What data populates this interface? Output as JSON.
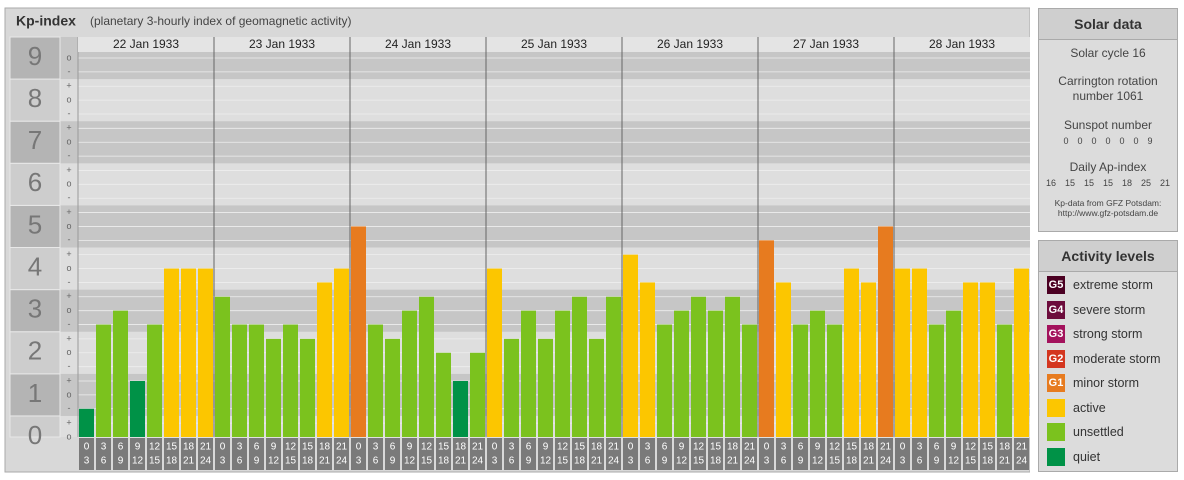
{
  "chart_data": {
    "type": "bar",
    "title": "Kp-index",
    "subtitle": "(planetary 3-hourly index of geomagnetic activity)",
    "ylim": [
      0,
      9
    ],
    "yticks": [
      0,
      1,
      2,
      3,
      4,
      5,
      6,
      7,
      8,
      9
    ],
    "minor_ticks": [
      {
        "value": 9,
        "label": "o"
      },
      {
        "value": 8.67,
        "label": "-"
      },
      {
        "value": 8.33,
        "label": "+"
      },
      {
        "value": 8,
        "label": "o"
      },
      {
        "value": 7.67,
        "label": "-"
      },
      {
        "value": 7.33,
        "label": "+"
      },
      {
        "value": 7,
        "label": "o"
      },
      {
        "value": 6.67,
        "label": "-"
      },
      {
        "value": 6.33,
        "label": "+"
      },
      {
        "value": 6,
        "label": "o"
      },
      {
        "value": 5.67,
        "label": "-"
      },
      {
        "value": 5.33,
        "label": "+"
      },
      {
        "value": 5,
        "label": "o"
      },
      {
        "value": 4.67,
        "label": "-"
      },
      {
        "value": 4.33,
        "label": "+"
      },
      {
        "value": 4,
        "label": "o"
      },
      {
        "value": 3.67,
        "label": "-"
      },
      {
        "value": 3.33,
        "label": "+"
      },
      {
        "value": 3,
        "label": "o"
      },
      {
        "value": 2.67,
        "label": "-"
      },
      {
        "value": 2.33,
        "label": "+"
      },
      {
        "value": 2,
        "label": "o"
      },
      {
        "value": 1.67,
        "label": "-"
      },
      {
        "value": 1.33,
        "label": "+"
      },
      {
        "value": 1,
        "label": "o"
      },
      {
        "value": 0.67,
        "label": "-"
      },
      {
        "value": 0.33,
        "label": "+"
      },
      {
        "value": 0,
        "label": "o"
      }
    ],
    "hours": [
      [
        "0",
        "3"
      ],
      [
        "3",
        "6"
      ],
      [
        "6",
        "9"
      ],
      [
        "9",
        "12"
      ],
      [
        "12",
        "15"
      ],
      [
        "15",
        "18"
      ],
      [
        "18",
        "21"
      ],
      [
        "21",
        "24"
      ]
    ],
    "days": [
      {
        "date": "22 Jan 1933",
        "values": [
          0.67,
          2.67,
          3,
          1.33,
          2.67,
          4,
          4,
          4
        ],
        "colors": [
          "#009247",
          "#7bc21e",
          "#7bc21e",
          "#009247",
          "#7bc21e",
          "#fcc600",
          "#fcc600",
          "#fcc600"
        ]
      },
      {
        "date": "23 Jan 1933",
        "values": [
          3.33,
          2.67,
          2.67,
          2.33,
          2.67,
          2.33,
          3.67,
          4
        ],
        "colors": [
          "#7bc21e",
          "#7bc21e",
          "#7bc21e",
          "#7bc21e",
          "#7bc21e",
          "#7bc21e",
          "#fcc600",
          "#fcc600"
        ]
      },
      {
        "date": "24 Jan 1933",
        "values": [
          5,
          2.67,
          2.33,
          3,
          3.33,
          2,
          1.33,
          2
        ],
        "colors": [
          "#e77b1f",
          "#7bc21e",
          "#7bc21e",
          "#7bc21e",
          "#7bc21e",
          "#7bc21e",
          "#009247",
          "#7bc21e"
        ]
      },
      {
        "date": "25 Jan 1933",
        "values": [
          4,
          2.33,
          3,
          2.33,
          3,
          3.33,
          2.33,
          3.33
        ],
        "colors": [
          "#fcc600",
          "#7bc21e",
          "#7bc21e",
          "#7bc21e",
          "#7bc21e",
          "#7bc21e",
          "#7bc21e",
          "#7bc21e"
        ]
      },
      {
        "date": "26 Jan 1933",
        "values": [
          4.33,
          3.67,
          2.67,
          3,
          3.33,
          3,
          3.33,
          2.67
        ],
        "colors": [
          "#fcc600",
          "#fcc600",
          "#7bc21e",
          "#7bc21e",
          "#7bc21e",
          "#7bc21e",
          "#7bc21e",
          "#7bc21e"
        ]
      },
      {
        "date": "27 Jan 1933",
        "values": [
          4.67,
          3.67,
          2.67,
          3,
          2.67,
          4,
          3.67,
          5
        ],
        "colors": [
          "#e77b1f",
          "#fcc600",
          "#7bc21e",
          "#7bc21e",
          "#7bc21e",
          "#fcc600",
          "#fcc600",
          "#e77b1f"
        ]
      },
      {
        "date": "28 Jan 1933",
        "values": [
          4,
          4,
          2.67,
          3,
          3.67,
          3.67,
          2.67,
          4
        ],
        "colors": [
          "#fcc600",
          "#fcc600",
          "#7bc21e",
          "#7bc21e",
          "#fcc600",
          "#fcc600",
          "#7bc21e",
          "#fcc600"
        ]
      }
    ]
  },
  "solar_data": {
    "title": "Solar data",
    "cycle": "Solar cycle 16",
    "carrington": "Carrington rotation number 1061",
    "sunspot_label": "Sunspot number",
    "sunspot": [
      0,
      0,
      0,
      0,
      0,
      0,
      9
    ],
    "ap_label": "Daily Ap-index",
    "ap": [
      16,
      15,
      15,
      15,
      18,
      25,
      21
    ],
    "source": "Kp-data from GFZ Potsdam:",
    "url": "http://www.gfz-potsdam.de"
  },
  "activity_levels": {
    "title": "Activity levels",
    "items": [
      {
        "badge": "G5",
        "label": "extreme storm",
        "color": "#4b0022"
      },
      {
        "badge": "G4",
        "label": "severe storm",
        "color": "#6c0c3c"
      },
      {
        "badge": "G3",
        "label": "strong storm",
        "color": "#a3125c"
      },
      {
        "badge": "G2",
        "label": "moderate storm",
        "color": "#d4361f"
      },
      {
        "badge": "G1",
        "label": "minor storm",
        "color": "#e77b1f"
      },
      {
        "label": "active",
        "color": "#fcc600"
      },
      {
        "label": "unsettled",
        "color": "#7bc21e"
      },
      {
        "label": "quiet",
        "color": "#009247"
      }
    ]
  }
}
